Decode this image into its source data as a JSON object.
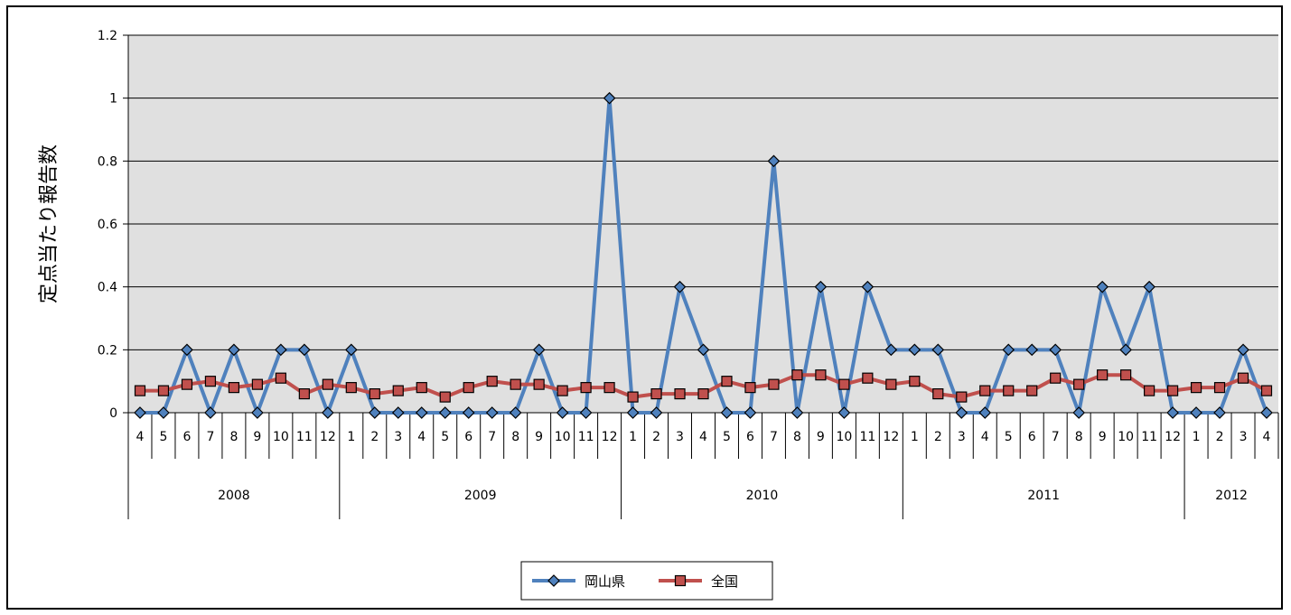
{
  "chart_data": {
    "type": "line",
    "title": "",
    "xlabel": "",
    "ylabel": "定点当たり報告数",
    "ylim": [
      0,
      1.2
    ],
    "yticks": [
      "0",
      "0.2",
      "0.4",
      "0.6",
      "0.8",
      "1",
      "1.2"
    ],
    "grid": true,
    "legend_position": "bottom",
    "categories": [
      "4",
      "5",
      "6",
      "7",
      "8",
      "9",
      "10",
      "11",
      "12",
      "1",
      "2",
      "3",
      "4",
      "5",
      "6",
      "7",
      "8",
      "9",
      "10",
      "11",
      "12",
      "1",
      "2",
      "3",
      "4",
      "5",
      "6",
      "7",
      "8",
      "9",
      "10",
      "11",
      "12",
      "1",
      "2",
      "3",
      "4",
      "5",
      "6",
      "7",
      "8",
      "9",
      "10",
      "11",
      "12",
      "1",
      "2",
      "3",
      "4"
    ],
    "year_groups": [
      {
        "label": "2008",
        "count": 9
      },
      {
        "label": "2009",
        "count": 12
      },
      {
        "label": "2010",
        "count": 12
      },
      {
        "label": "2011",
        "count": 12
      },
      {
        "label": "2012",
        "count": 4
      }
    ],
    "series": [
      {
        "name": "岡山県",
        "color": "#4f81bd",
        "marker": "diamond",
        "marker_fill": "#4f81bd",
        "values": [
          0,
          0,
          0.2,
          0,
          0.2,
          0,
          0.2,
          0.2,
          0,
          0.2,
          0,
          0,
          0,
          0,
          0,
          0,
          0,
          0.2,
          0,
          0,
          1.0,
          0,
          0,
          0.4,
          0.2,
          0,
          0,
          0.8,
          0,
          0.4,
          0,
          0.4,
          0.2,
          0.2,
          0.2,
          0,
          0,
          0.2,
          0.2,
          0.2,
          0,
          0.4,
          0.2,
          0.4,
          0,
          0,
          0,
          0.2,
          0
        ]
      },
      {
        "name": "全国",
        "color": "#c0504d",
        "marker": "square",
        "marker_fill": "#c0504d",
        "values": [
          0.07,
          0.07,
          0.09,
          0.1,
          0.08,
          0.09,
          0.11,
          0.06,
          0.09,
          0.08,
          0.06,
          0.07,
          0.08,
          0.05,
          0.08,
          0.1,
          0.09,
          0.09,
          0.07,
          0.08,
          0.08,
          0.05,
          0.06,
          0.06,
          0.06,
          0.1,
          0.08,
          0.09,
          0.12,
          0.12,
          0.09,
          0.11,
          0.09,
          0.1,
          0.06,
          0.05,
          0.07,
          0.07,
          0.07,
          0.11,
          0.09,
          0.12,
          0.12,
          0.07,
          0.07,
          0.08,
          0.08,
          0.11,
          0.07
        ]
      }
    ],
    "plot_background": "#e0e0e0"
  }
}
